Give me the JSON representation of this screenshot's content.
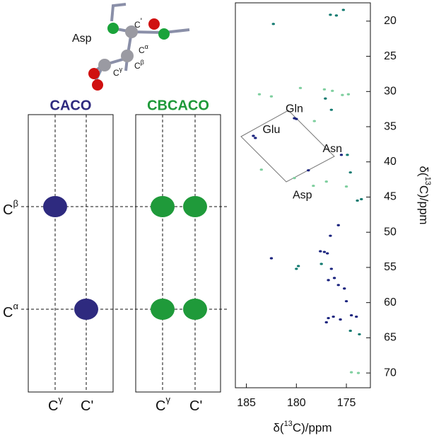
{
  "molecule": {
    "name": "Asp",
    "atoms": [
      {
        "base": "C",
        "sup": "'"
      },
      {
        "base": "C",
        "sup": "α"
      },
      {
        "base": "C",
        "sup": "β"
      },
      {
        "base": "C",
        "sup": "γ"
      }
    ]
  },
  "panels": [
    {
      "title": "CACO",
      "color": "#2e2a7f"
    },
    {
      "title": "CBCACO",
      "color": "#1f9a3a"
    }
  ],
  "rows": [
    {
      "base": "C",
      "sup": "β"
    },
    {
      "base": "C",
      "sup": "α"
    }
  ],
  "columns": [
    {
      "base": "C",
      "sup": "γ"
    },
    {
      "base": "C",
      "sup": "'"
    }
  ],
  "chart_data": {
    "type": "scatter",
    "x_label": {
      "pre": "δ(",
      "sup": "13",
      "post": "C)/ppm"
    },
    "y_label": {
      "pre": "δ(",
      "sup": "13",
      "post": "C)/ppm"
    },
    "xlim": [
      186.1,
      172.6
    ],
    "xticks": [
      185,
      180,
      175
    ],
    "ylim": [
      17.4,
      72.1
    ],
    "yticks": [
      20,
      25,
      30,
      35,
      40,
      45,
      50,
      55,
      60,
      65,
      70
    ],
    "annotations": [
      {
        "text": "Gln",
        "x": 180.2,
        "y": 32.5
      },
      {
        "text": "Glu",
        "x": 182.5,
        "y": 35.5
      },
      {
        "text": "Asn",
        "x": 176.4,
        "y": 38.2
      },
      {
        "text": "Asp",
        "x": 179.4,
        "y": 44.8
      }
    ],
    "series": [
      {
        "color": "#1a237e",
        "x": [
          184.3,
          184.1,
          180.2,
          180.0,
          178.8,
          175.5,
          177.6,
          177.2,
          176.9,
          182.5,
          176.2,
          176.8,
          175.8,
          175.2,
          176.5,
          175.0,
          176.8,
          176.3,
          175.6,
          174.5,
          174.0,
          177.0,
          176.6,
          175.8
        ],
        "values": [
          36.3,
          36.6,
          33.8,
          33.9,
          41.2,
          39.0,
          52.7,
          52.8,
          53.0,
          53.7,
          56.5,
          56.8,
          57.5,
          58.0,
          55.2,
          59.8,
          62.2,
          62.0,
          62.4,
          61.8,
          62.0,
          62.8,
          50.5,
          49.0
        ]
      },
      {
        "color": "#127a70",
        "x": [
          176.6,
          176.0,
          175.3,
          182.3,
          174.9,
          174.6,
          173.5,
          173.9,
          177.1,
          176.5,
          177.5,
          180.0,
          179.8,
          174.6,
          173.7
        ],
        "values": [
          19.1,
          19.2,
          18.4,
          20.4,
          39.0,
          41.5,
          45.3,
          45.5,
          31.0,
          32.6,
          54.5,
          55.2,
          54.8,
          64.0,
          64.5
        ]
      },
      {
        "color": "#7fcf9f",
        "x": [
          183.7,
          177.2,
          179.6,
          176.4,
          175.4,
          183.5,
          180.2,
          178.3,
          177.0,
          175.0,
          174.5,
          173.8,
          178.2,
          174.8,
          182.5
        ],
        "values": [
          30.4,
          29.7,
          29.5,
          29.9,
          30.5,
          41.1,
          42.3,
          43.4,
          42.8,
          43.5,
          69.9,
          70.0,
          34.2,
          30.4,
          30.7
        ]
      }
    ]
  }
}
